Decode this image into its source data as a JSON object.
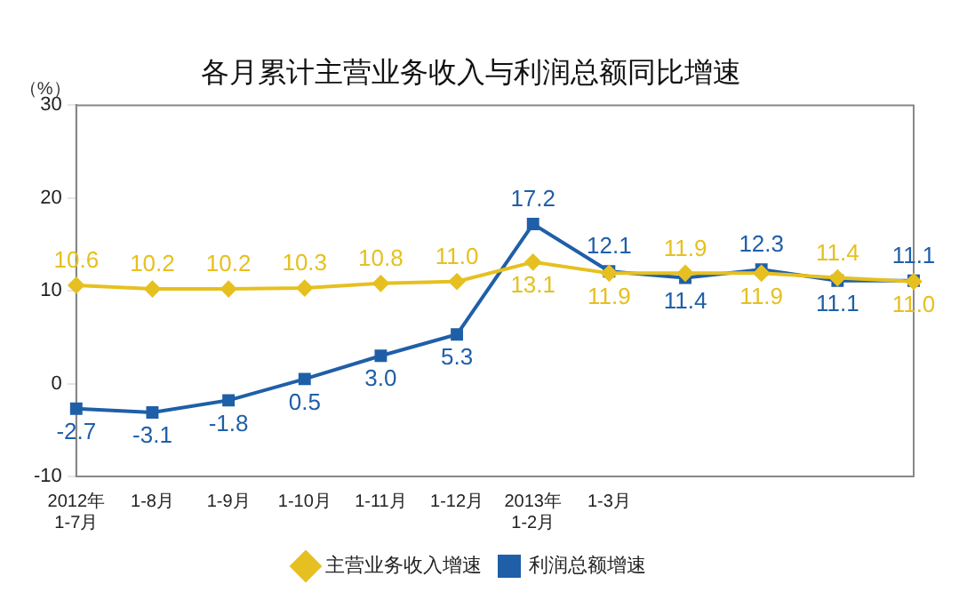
{
  "chart_data": {
    "type": "line",
    "title": "各月累计主营业务收入与利润总额同比增速",
    "ylabel": "（%）",
    "categories": [
      "2012年\n1-7月",
      "1-8月",
      "1-9月",
      "1-10月",
      "1-11月",
      "1-12月",
      "2013年\n1-2月",
      "1-3月",
      null,
      null,
      null,
      null
    ],
    "series": [
      {
        "name": "主营业务收入增速",
        "color": "#e6c020",
        "marker": "diamond",
        "values": [
          10.6,
          10.2,
          10.2,
          10.3,
          10.8,
          11.0,
          13.1,
          11.9,
          11.9,
          11.9,
          11.4,
          11.0
        ],
        "value_labels": [
          "10.6",
          "10.2",
          "10.2",
          "10.3",
          "10.8",
          "11.0",
          "13.1",
          "11.9",
          "11.9",
          "11.9",
          "11.4",
          "11.0"
        ]
      },
      {
        "name": "利润总额增速",
        "color": "#1f5fa8",
        "marker": "square",
        "values": [
          -2.7,
          -3.1,
          -1.8,
          0.5,
          3.0,
          5.3,
          17.2,
          12.1,
          11.4,
          12.3,
          11.1,
          11.1
        ],
        "value_labels": [
          "-2.7",
          "-3.1",
          "-1.8",
          "0.5",
          "3.0",
          "5.3",
          "17.2",
          "12.1",
          "11.4",
          "12.3",
          "11.1",
          "11.1"
        ]
      }
    ],
    "ylim": [
      -10,
      30
    ],
    "yticks": [
      -10,
      0,
      10,
      20,
      30
    ],
    "grid": false,
    "legend": "bottom"
  }
}
